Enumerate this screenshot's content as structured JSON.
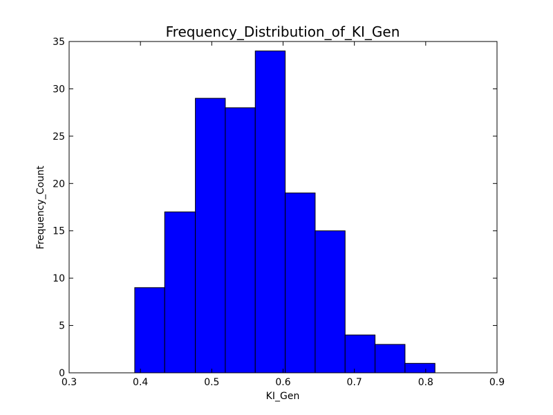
{
  "chart_data": {
    "type": "bar",
    "title": "Frequency_Distribution_of_KI_Gen",
    "xlabel": "KI_Gen",
    "ylabel": "Frequency_Count",
    "xlim": [
      0.3,
      0.9
    ],
    "ylim": [
      0,
      35
    ],
    "xticks": [
      "0.3",
      "0.4",
      "0.5",
      "0.6",
      "0.7",
      "0.8",
      "0.9"
    ],
    "yticks": [
      "0",
      "5",
      "10",
      "15",
      "20",
      "25",
      "30",
      "35"
    ],
    "bins": [
      {
        "start": 0.392,
        "end": 0.434,
        "count": 9
      },
      {
        "start": 0.434,
        "end": 0.477,
        "count": 17
      },
      {
        "start": 0.477,
        "end": 0.519,
        "count": 29
      },
      {
        "start": 0.519,
        "end": 0.561,
        "count": 28
      },
      {
        "start": 0.561,
        "end": 0.603,
        "count": 34
      },
      {
        "start": 0.603,
        "end": 0.645,
        "count": 19
      },
      {
        "start": 0.645,
        "end": 0.687,
        "count": 15
      },
      {
        "start": 0.687,
        "end": 0.729,
        "count": 4
      },
      {
        "start": 0.729,
        "end": 0.771,
        "count": 3
      },
      {
        "start": 0.771,
        "end": 0.813,
        "count": 1
      }
    ],
    "bar_color": "#0000ff",
    "edge_color": "#000000",
    "grid": false,
    "legend": false
  }
}
